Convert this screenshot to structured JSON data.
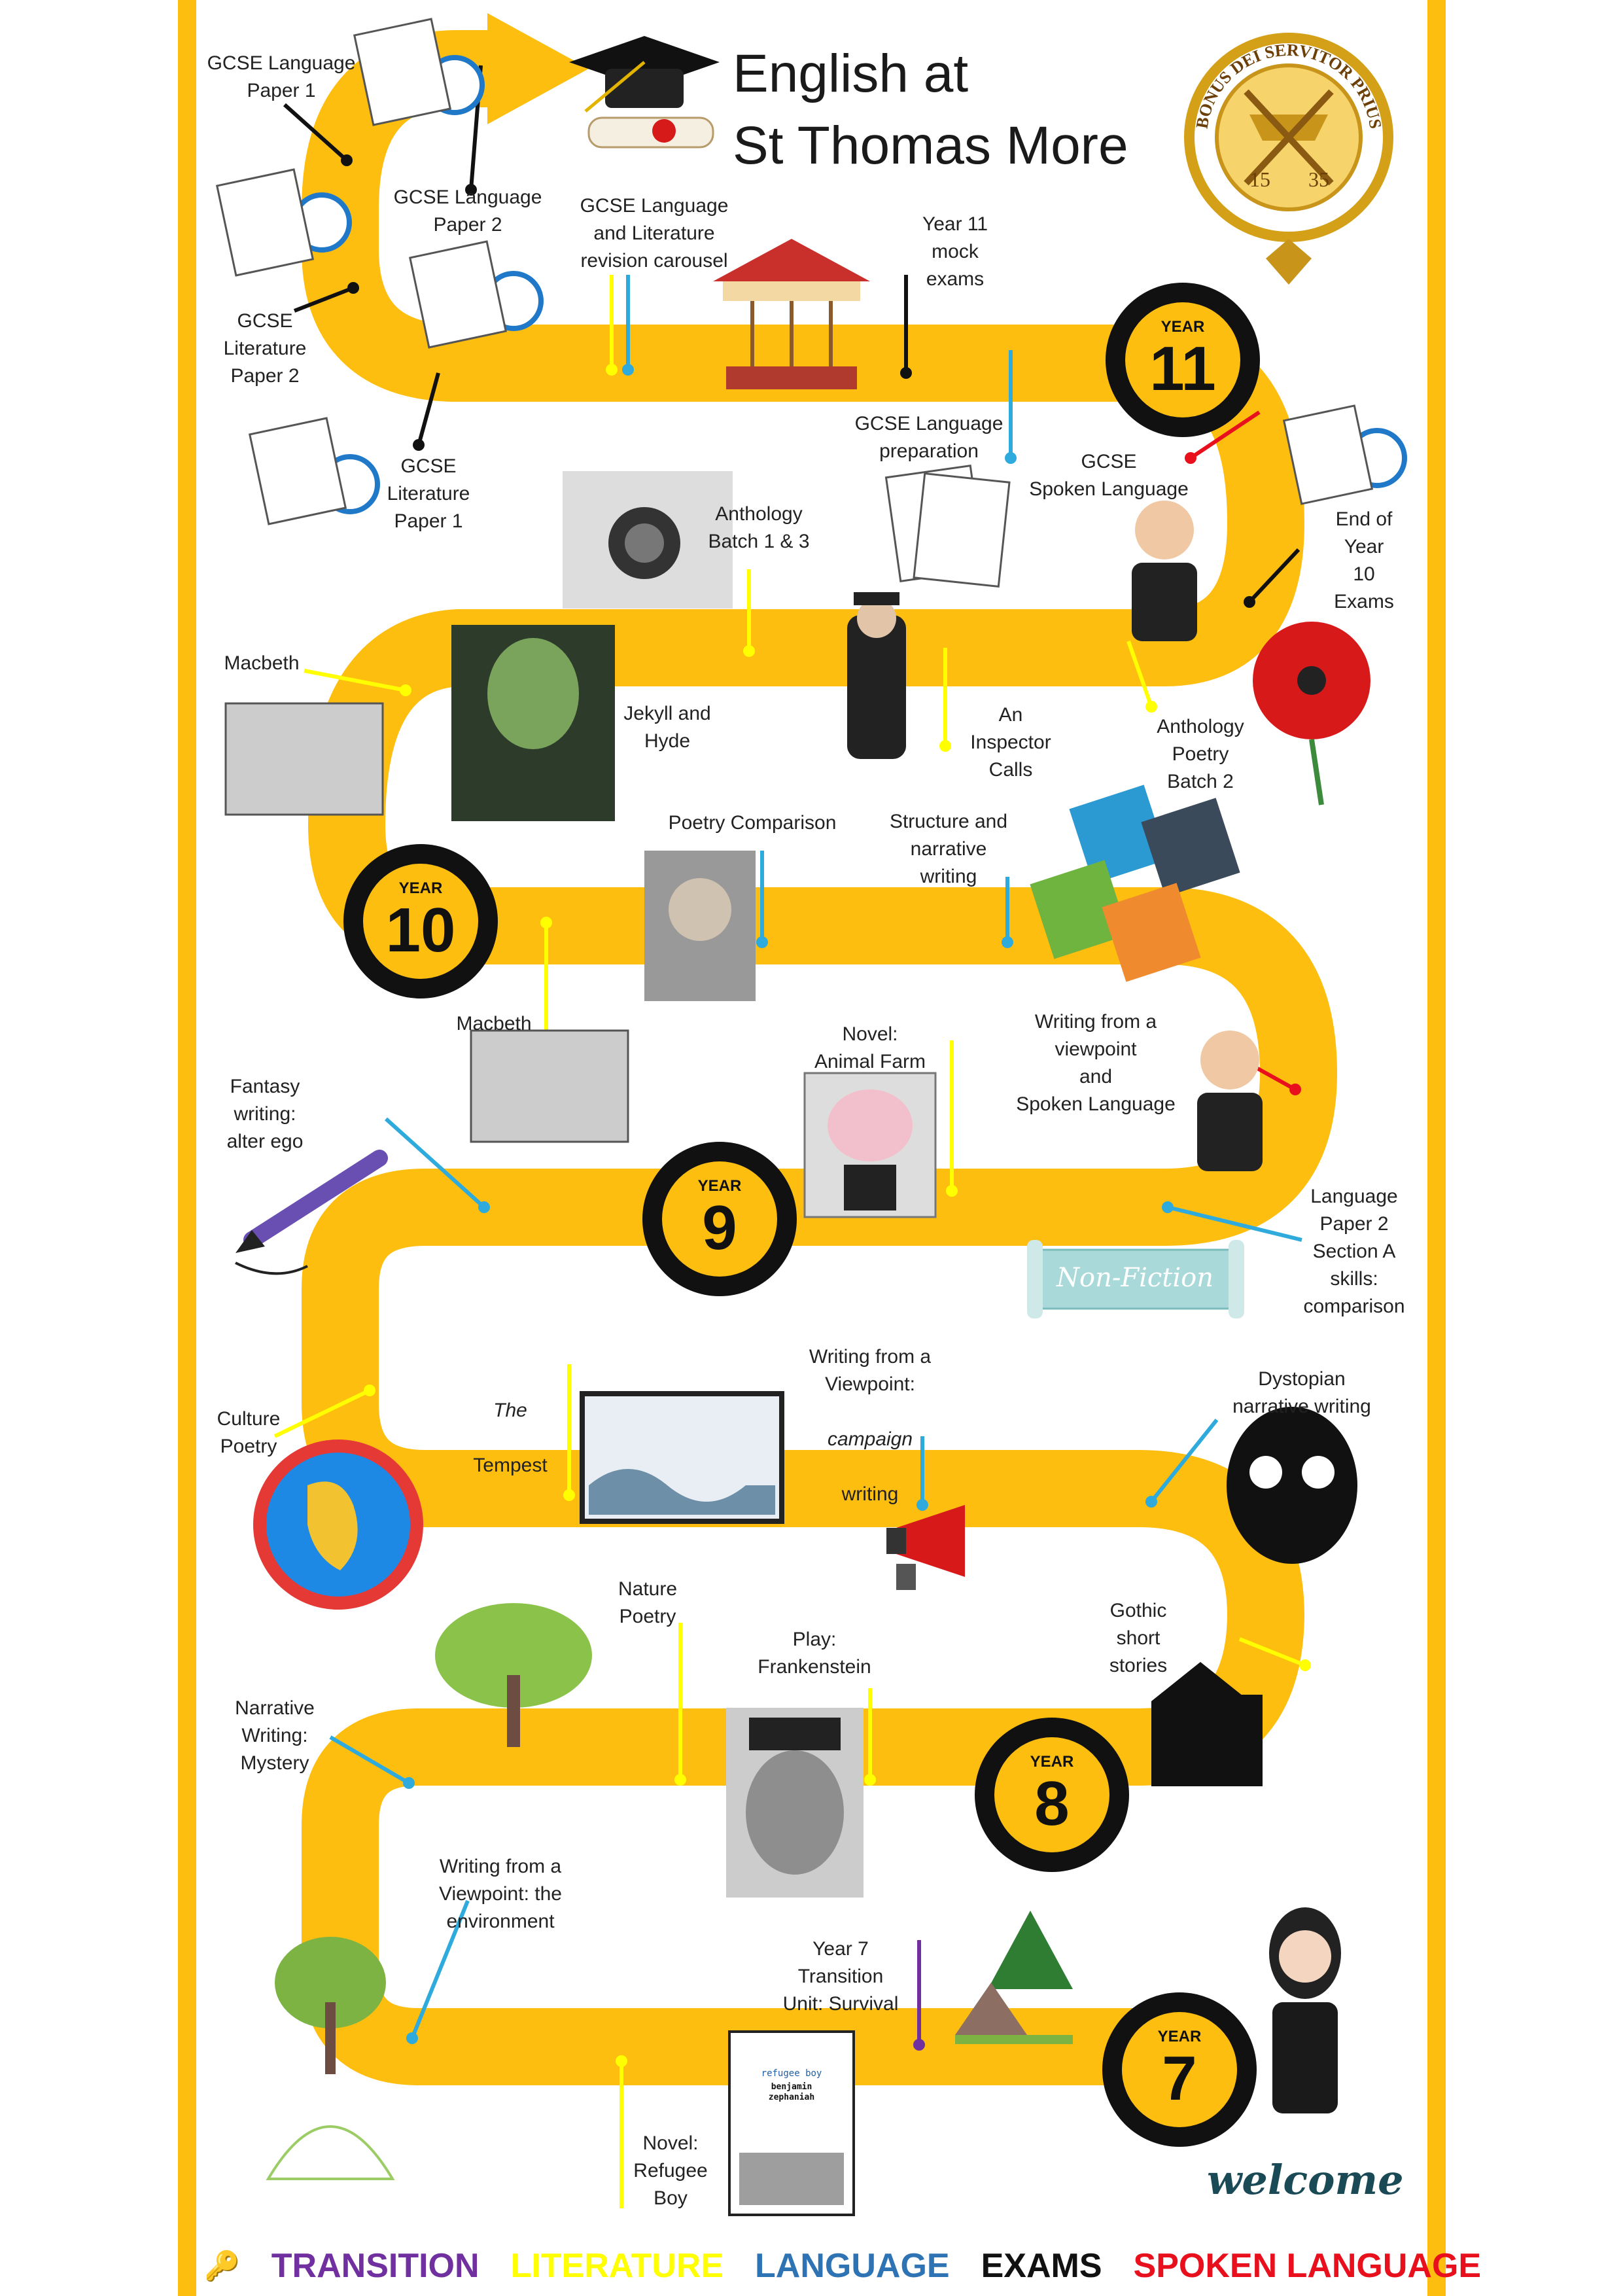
{
  "title": "English at\nSt Thomas More",
  "colors": {
    "road": "#fdbe10",
    "transition": "#7030a0",
    "literature": "#ffff00",
    "language": "#2eaadc",
    "exams": "#111111",
    "spoken_language": "#e8101c"
  },
  "crest": {
    "text": "BONUS DEI SERVITOR PRIUS",
    "year_left": "15",
    "year_right": "35"
  },
  "years": [
    {
      "word": "YEAR",
      "number": "11"
    },
    {
      "word": "YEAR",
      "number": "10"
    },
    {
      "word": "YEAR",
      "number": "9"
    },
    {
      "word": "YEAR",
      "number": "8"
    },
    {
      "word": "YEAR",
      "number": "7"
    }
  ],
  "labels": {
    "gcse_lang_p1": "GCSE Language\nPaper 1",
    "gcse_lang_p2": "GCSE Language\nPaper 2",
    "gcse_lit_p2": "GCSE\nLiterature\nPaper 2",
    "gcse_lit_p1": "GCSE\nLiterature\nPaper 1",
    "carousel": "GCSE Language\nand Literature\nrevision carousel",
    "mock": "Year 11\nmock\nexams",
    "lang_prep": "GCSE Language\npreparation",
    "spoken": "GCSE\nSpoken Language",
    "end_y10": "End of\nYear\n10\nExams",
    "anthology13": "Anthology\nBatch 1 & 3",
    "macbeth_y10": "Macbeth",
    "jekyll": "Jekyll and\nHyde",
    "inspector": "An\nInspector\nCalls",
    "anthology2": "Anthology\nPoetry\nBatch 2",
    "poetry_comp": "Poetry Comparison",
    "structure": "Structure and\nnarrative\nwriting",
    "macbeth_y9": "Macbeth",
    "animal_farm": "Novel:\nAnimal Farm",
    "viewpoint_spoken": "Writing from a\nviewpoint\nand\nSpoken Language",
    "fantasy": "Fantasy\nwriting:\nalter ego",
    "lang_p2a": "Language\nPaper 2\nSection A\nskills:\ncomparison",
    "tempest_title": "The",
    "tempest_rest": "Tempest",
    "campaign_a": "Writing from a\nViewpoint:",
    "campaign_i": "campaign",
    "campaign_b": "writing",
    "dystopian": "Dystopian\nnarrative writing",
    "culture": "Culture\nPoetry",
    "nature": "Nature\nPoetry",
    "frankenstein": "Play:\nFrankenstein",
    "gothic": "Gothic\nshort\nstories",
    "mystery": "Narrative\nWriting:\nMystery",
    "environment": "Writing from a\nViewpoint: the\nenvironment",
    "transition_unit": "Year 7\nTransition\nUnit: Survival",
    "refugee": "Novel:\nRefugee\nBoy"
  },
  "badges_text": {
    "non_fiction": "Non-Fiction",
    "welcome": "welcome",
    "book_title": "refugee boy",
    "book_author": "benjamin\nzephaniah"
  },
  "legend": [
    {
      "label": "TRANSITION",
      "color": "#7030a0"
    },
    {
      "label": "LITERATURE",
      "color": "#ffff00"
    },
    {
      "label": "LANGUAGE",
      "color": "#2e74b5"
    },
    {
      "label": "EXAMS",
      "color": "#111111"
    },
    {
      "label": "SPOKEN LANGUAGE",
      "color": "#e8101c"
    }
  ]
}
